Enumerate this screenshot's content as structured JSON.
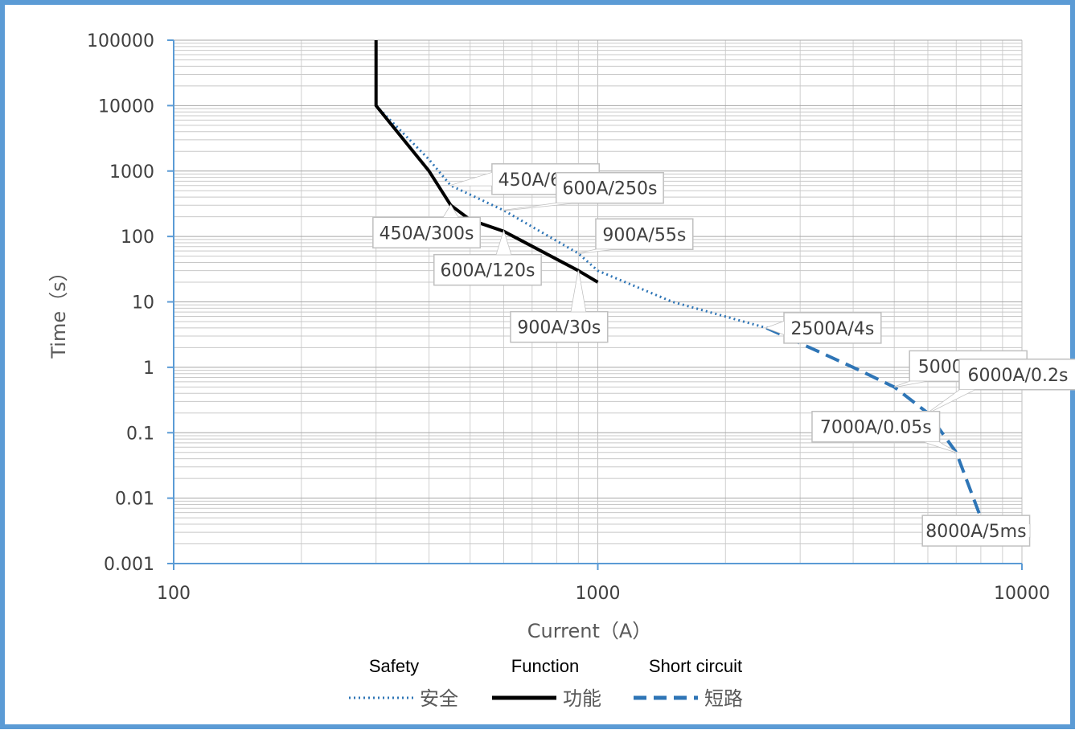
{
  "chart_data": {
    "type": "line",
    "xscale": "log",
    "yscale": "log",
    "xlim": [
      100,
      10000
    ],
    "ylim": [
      0.001,
      100000
    ],
    "xticks": [
      "100",
      "1000",
      "10000"
    ],
    "yticks": [
      "100000",
      "10000",
      "1000",
      "100",
      "10",
      "1",
      "0.1",
      "0.01",
      "0.001"
    ],
    "xlabel": "Current（A）",
    "ylabel": "Time（s）",
    "grid": true,
    "legend_position": "bottom",
    "legend_top_labels": [
      "Safety",
      "Function",
      "Short circuit"
    ],
    "series": [
      {
        "name": "安全",
        "style": "dotted",
        "color": "#2e75b6",
        "x": [
          300,
          400,
          450,
          600,
          900,
          1000,
          1500,
          2500
        ],
        "y": [
          10000,
          1500,
          600,
          250,
          55,
          30,
          10,
          4
        ]
      },
      {
        "name": "功能",
        "style": "solid",
        "color": "#000000",
        "x": [
          300,
          300,
          400,
          450,
          500,
          600,
          900,
          1000
        ],
        "y": [
          100000,
          10000,
          1000,
          300,
          180,
          120,
          30,
          20
        ]
      },
      {
        "name": "短路",
        "style": "dashed",
        "color": "#2e75b6",
        "x": [
          2500,
          4000,
          5000,
          6000,
          7000,
          8000
        ],
        "y": [
          4,
          1,
          0.5,
          0.2,
          0.05,
          0.005
        ]
      }
    ],
    "annotations": [
      {
        "text": "450A/600s",
        "x": 450,
        "y": 600
      },
      {
        "text": "600A/250s",
        "x": 600,
        "y": 250
      },
      {
        "text": "900A/55s",
        "x": 900,
        "y": 55
      },
      {
        "text": "450A/300s",
        "x": 450,
        "y": 300
      },
      {
        "text": "600A/120s",
        "x": 600,
        "y": 120
      },
      {
        "text": "900A/30s",
        "x": 900,
        "y": 30
      },
      {
        "text": "2500A/4s",
        "x": 2500,
        "y": 4
      },
      {
        "text": "5000A/0.5s",
        "x": 5000,
        "y": 0.5
      },
      {
        "text": "6000A/0.2s",
        "x": 6000,
        "y": 0.2
      },
      {
        "text": "7000A/0.05s",
        "x": 7000,
        "y": 0.05
      },
      {
        "text": "8000A/5ms",
        "x": 8000,
        "y": 0.005
      }
    ]
  }
}
